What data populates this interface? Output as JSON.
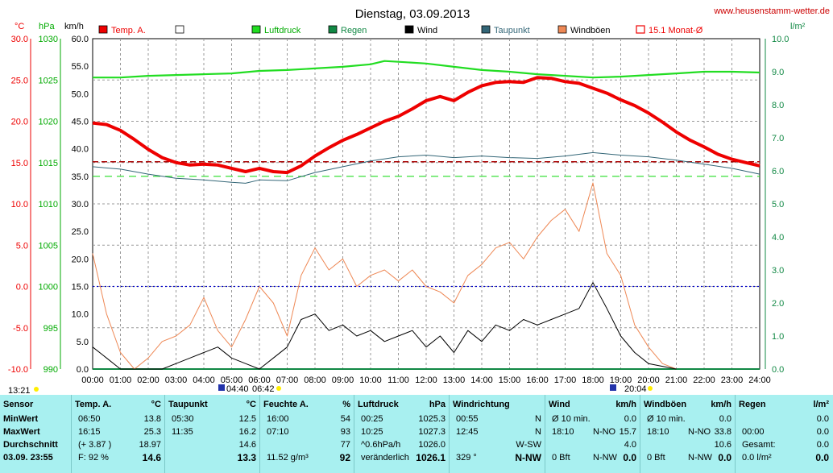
{
  "header": {
    "title": "Dienstag, 03.09.2013",
    "website": "www.heusenstamm-wetter.de",
    "unit_celsius": "°C",
    "unit_hpa": "hPa",
    "unit_kmh": "km/h",
    "unit_rain": "l/m²"
  },
  "legend": [
    {
      "name": "Temp. A.",
      "color": "#ee0000"
    },
    {
      "name": "",
      "color": "#ffffff"
    },
    {
      "name": "Luftdruck",
      "color": "#22dd22"
    },
    {
      "name": "Regen",
      "color": "#118844"
    },
    {
      "name": "Wind",
      "color": "#000000"
    },
    {
      "name": "Taupunkt",
      "color": "#336677"
    },
    {
      "name": "Windböen",
      "color": "#ee8855"
    },
    {
      "name": "15.1 Monat-Ø",
      "color": "#ee0000"
    }
  ],
  "axes": {
    "temp_ticks": [
      "30.0",
      "25.0",
      "20.0",
      "15.0",
      "10.0",
      "5.0",
      "0.0",
      "-5.0",
      "-10.0"
    ],
    "hpa_ticks": [
      "1030",
      "1025",
      "1020",
      "1015",
      "1010",
      "1005",
      "1000",
      "995",
      "990"
    ],
    "kmh_ticks": [
      "60.0",
      "55.0",
      "50.0",
      "45.0",
      "40.0",
      "35.0",
      "30.0",
      "25.0",
      "20.0",
      "15.0",
      "10.0",
      "5.0",
      "0.0"
    ],
    "rain_ticks": [
      "10.0",
      "9.0",
      "8.0",
      "7.0",
      "6.0",
      "5.0",
      "4.0",
      "3.0",
      "2.0",
      "1.0",
      "0.0"
    ],
    "time_ticks": [
      "00:00",
      "01:00",
      "02:00",
      "03:00",
      "04:00",
      "05:00",
      "06:00",
      "07:00",
      "08:00",
      "09:00",
      "10:00",
      "11:00",
      "12:00",
      "13:00",
      "14:00",
      "15:00",
      "16:00",
      "17:00",
      "18:00",
      "19:00",
      "20:00",
      "21:00",
      "22:00",
      "23:00",
      "24:00"
    ]
  },
  "markers": {
    "moonset": "13:21",
    "sunrise": "04:40",
    "sunrise2": "06:42",
    "sunset": "20:04"
  },
  "chart_data": {
    "type": "line",
    "x_unit": "hour",
    "temp_range": [
      -10,
      30
    ],
    "hpa_range": [
      990,
      1030
    ],
    "kmh_range": [
      0,
      60
    ],
    "rain_range": [
      0,
      10
    ],
    "monthly_avg_temp": 15.1,
    "series": [
      {
        "name": "Temp. A.",
        "axis": "temp",
        "x": [
          0,
          0.5,
          1,
          1.5,
          2,
          2.5,
          3,
          3.5,
          4,
          4.5,
          5,
          5.5,
          6,
          6.5,
          7,
          7.5,
          8,
          8.5,
          9,
          9.5,
          10,
          10.5,
          11,
          11.5,
          12,
          12.5,
          13,
          13.5,
          14,
          14.5,
          15,
          15.5,
          16,
          16.5,
          17,
          17.5,
          18,
          18.5,
          19,
          19.5,
          20,
          20.5,
          21,
          21.5,
          22,
          22.5,
          23,
          23.5,
          24
        ],
        "values": [
          19.8,
          19.6,
          18.9,
          17.8,
          16.6,
          15.6,
          15.0,
          14.7,
          14.8,
          14.7,
          14.3,
          13.9,
          14.3,
          13.9,
          13.8,
          14.6,
          15.8,
          16.8,
          17.7,
          18.4,
          19.2,
          20.0,
          20.6,
          21.5,
          22.5,
          23.0,
          22.5,
          23.5,
          24.3,
          24.7,
          24.8,
          24.7,
          25.3,
          25.2,
          24.8,
          24.6,
          24.0,
          23.4,
          22.6,
          21.9,
          21.0,
          19.9,
          18.7,
          17.7,
          16.9,
          16.0,
          15.4,
          15.0,
          14.6
        ]
      },
      {
        "name": "Luftdruck",
        "axis": "hpa",
        "x": [
          0,
          1,
          2,
          3,
          4,
          5,
          6,
          7,
          8,
          9,
          10,
          10.5,
          11,
          12,
          13,
          14,
          15,
          16,
          17,
          18,
          19,
          20,
          21,
          22,
          23,
          24
        ],
        "values": [
          1025.3,
          1025.3,
          1025.5,
          1025.6,
          1025.7,
          1025.8,
          1026.1,
          1026.2,
          1026.4,
          1026.6,
          1026.9,
          1027.3,
          1027.2,
          1027.0,
          1026.6,
          1026.2,
          1026.0,
          1025.7,
          1025.5,
          1025.3,
          1025.4,
          1025.6,
          1025.8,
          1026.0,
          1026.0,
          1025.9
        ]
      },
      {
        "name": "Taupunkt",
        "axis": "temp",
        "x": [
          0,
          1,
          2,
          3,
          4,
          5,
          5.5,
          6,
          7,
          8,
          9,
          10,
          11,
          12,
          13,
          14,
          15,
          16,
          17,
          18,
          19,
          20,
          21,
          22,
          23,
          24
        ],
        "values": [
          14.5,
          14.2,
          13.6,
          13.1,
          12.9,
          12.6,
          12.5,
          12.9,
          12.8,
          13.8,
          14.5,
          15.2,
          15.7,
          15.9,
          15.6,
          15.8,
          15.6,
          15.5,
          15.8,
          16.2,
          15.9,
          15.7,
          15.3,
          14.8,
          14.3,
          13.6
        ]
      },
      {
        "name": "Wind",
        "axis": "kmh",
        "x": [
          0,
          0.5,
          1,
          1.5,
          2,
          2.5,
          3,
          3.5,
          4,
          4.5,
          5,
          5.5,
          6,
          6.5,
          7,
          7.5,
          8,
          8.5,
          9,
          9.5,
          10,
          10.5,
          11,
          11.5,
          12,
          12.5,
          13,
          13.5,
          14,
          14.5,
          15,
          15.5,
          16,
          16.5,
          17,
          17.5,
          18,
          18.5,
          19,
          19.5,
          20,
          20.5,
          21
        ],
        "values": [
          4,
          2,
          0,
          0,
          0,
          0,
          1,
          2,
          3,
          4,
          2,
          1,
          0,
          2,
          4,
          9,
          10,
          7,
          8,
          6,
          7,
          5,
          6,
          7,
          4,
          6,
          3,
          7,
          5,
          8,
          7,
          9,
          8,
          9,
          10,
          11,
          15.7,
          11,
          6,
          3,
          1,
          0.5,
          0
        ]
      },
      {
        "name": "Windböen",
        "axis": "kmh",
        "x": [
          0,
          0.5,
          1,
          1.5,
          2,
          2.5,
          3,
          3.5,
          4,
          4.5,
          5,
          5.5,
          6,
          6.5,
          7,
          7.5,
          8,
          8.5,
          9,
          9.5,
          10,
          10.5,
          11,
          11.5,
          12,
          12.5,
          13,
          13.5,
          14,
          14.5,
          15,
          15.5,
          16,
          16.5,
          17,
          17.5,
          18,
          18.5,
          19,
          19.5,
          20,
          20.5,
          21
        ],
        "values": [
          21,
          10,
          3,
          0,
          2,
          5,
          6,
          8,
          13,
          7,
          4,
          9,
          15,
          12,
          6,
          17,
          22,
          18,
          20,
          15,
          17,
          18,
          16,
          18,
          15,
          14,
          12,
          17,
          19,
          22,
          23,
          20,
          24,
          27,
          29,
          25,
          33.8,
          21,
          17,
          8,
          4,
          1,
          0
        ]
      },
      {
        "name": "Regen",
        "axis": "rain",
        "x": [
          0,
          24
        ],
        "values": [
          0,
          0
        ]
      }
    ]
  },
  "stats": {
    "sensor": {
      "header": "Sensor",
      "rows": [
        "MinWert",
        "MaxWert",
        "Durchschnitt",
        "03.09. 23:55"
      ]
    },
    "temp": {
      "header": "Temp. A.",
      "unit": "°C",
      "rows": [
        [
          "06:50",
          "13.8"
        ],
        [
          "16:15",
          "25.3"
        ],
        [
          "(+ 3.87 )",
          "18.97"
        ],
        [
          "F: 92 %",
          "14.6"
        ]
      ]
    },
    "taupunkt": {
      "header": "Taupunkt",
      "unit": "°C",
      "rows": [
        [
          "05:30",
          "12.5"
        ],
        [
          "11:35",
          "16.2"
        ],
        [
          "",
          "14.6"
        ],
        [
          "",
          "13.3"
        ]
      ]
    },
    "feuchte": {
      "header": "Feuchte A.",
      "unit": "%",
      "rows": [
        [
          "16:00",
          "54"
        ],
        [
          "07:10",
          "93"
        ],
        [
          "",
          "77"
        ],
        [
          "11.52 g/m³",
          "92"
        ]
      ]
    },
    "luftdruck": {
      "header": "Luftdruck",
      "unit": "hPa",
      "rows": [
        [
          "00:25",
          "1025.3"
        ],
        [
          "10:25",
          "1027.3"
        ],
        [
          "^0.6hPa/h",
          "1026.0"
        ],
        [
          "veränderlich",
          "1026.1"
        ]
      ]
    },
    "windrichtung": {
      "header": "Windrichtung",
      "unit": "",
      "rows": [
        [
          "00:55",
          "N"
        ],
        [
          "12:45",
          "N"
        ],
        [
          "",
          "W-SW"
        ],
        [
          "329 °",
          "N-NW"
        ]
      ]
    },
    "wind": {
      "header": "Wind",
      "unit": "km/h",
      "rows": [
        [
          "Ø 10 min.",
          "",
          "0.0"
        ],
        [
          "18:10",
          "N-NO",
          "15.7"
        ],
        [
          "",
          "",
          "4.0"
        ],
        [
          "0 Bft",
          "N-NW",
          "0.0"
        ]
      ]
    },
    "windboeen": {
      "header": "Windböen",
      "unit": "km/h",
      "rows": [
        [
          "Ø 10 min.",
          "",
          "0.0"
        ],
        [
          "18:10",
          "N-NO",
          "33.8"
        ],
        [
          "",
          "",
          "10.6"
        ],
        [
          "0 Bft",
          "N-NW",
          "0.0"
        ]
      ]
    },
    "regen": {
      "header": "Regen",
      "unit": "l/m²",
      "rows": [
        [
          "",
          "0.0"
        ],
        [
          "00:00",
          "0.0"
        ],
        [
          "Gesamt:",
          "0.0"
        ],
        [
          "0.0 l/m²",
          "0.0"
        ]
      ]
    }
  }
}
